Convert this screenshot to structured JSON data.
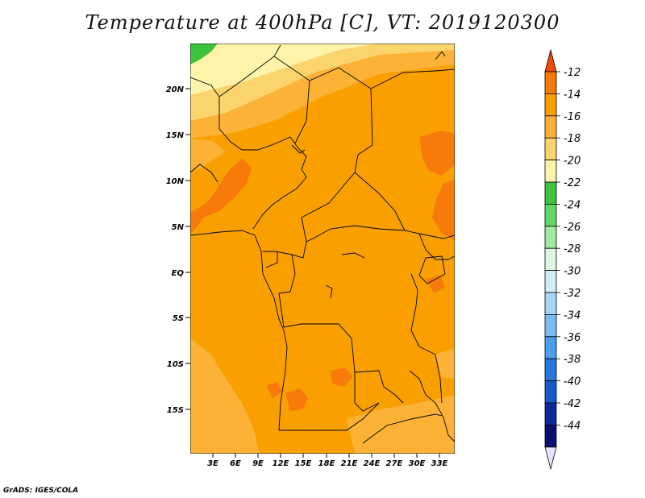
{
  "title": "Temperature at 400hPa [C], VT: 2019120300",
  "credit": "GrADS: IGES/COLA",
  "lat_ticks": [
    "20N",
    "15N",
    "10N",
    "5N",
    "EQ",
    "5S",
    "10S",
    "15S"
  ],
  "lon_ticks": [
    "3E",
    "6E",
    "9E",
    "12E",
    "15E",
    "18E",
    "21E",
    "24E",
    "27E",
    "30E",
    "33E"
  ],
  "colorbar": {
    "labels": [
      "-12",
      "-14",
      "-16",
      "-18",
      "-20",
      "-22",
      "-24",
      "-26",
      "-28",
      "-30",
      "-32",
      "-34",
      "-36",
      "-38",
      "-40",
      "-42",
      "-44"
    ],
    "colors": [
      "#f04a00",
      "#f87a0a",
      "#f9a000",
      "#fcb236",
      "#fcd46e",
      "#fff3aa",
      "#3cc43c",
      "#60d862",
      "#a0eaa0",
      "#dcf8e0",
      "#d2ecf8",
      "#a6d6f6",
      "#78bdf2",
      "#4aa0ec",
      "#2478de",
      "#145ac8",
      "#0a2a9c",
      "#0a1070",
      "#e4e4ff"
    ]
  },
  "colors": {
    "base": "#f9a000",
    "warm": "#f87a0a",
    "light": "#fcb236",
    "pale": "#fcd46e",
    "cream": "#fff3aa",
    "green": "#3cc43c"
  }
}
